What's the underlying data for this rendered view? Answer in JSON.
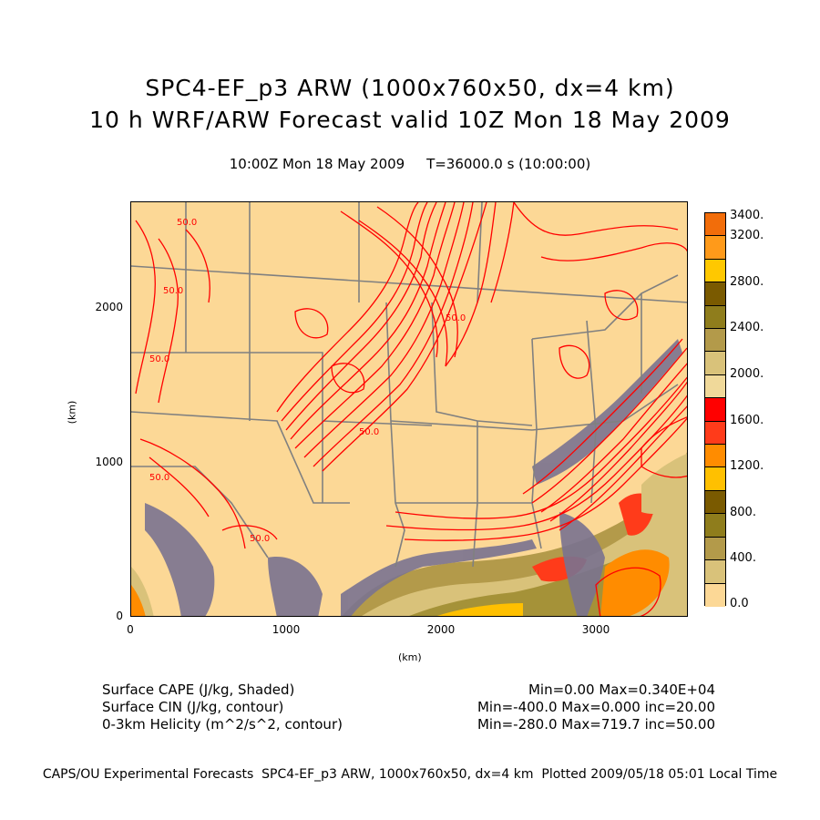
{
  "header": {
    "title_line1": "SPC4-EF_p3 ARW (1000x760x50, dx=4 km)",
    "title_line2": "10 h WRF/ARW Forecast valid 10Z Mon 18 May 2009",
    "subtitle": "10:00Z Mon 18 May 2009     T=36000.0 s (10:00:00)"
  },
  "axes": {
    "x_label": "(km)",
    "y_label": "(km)",
    "x_ticks": [
      "0",
      "1000",
      "2000",
      "3000"
    ],
    "y_ticks": [
      "0",
      "1000",
      "2000"
    ]
  },
  "map": {
    "shading_base_color": "#fcd896",
    "contour_color": "#ff0000",
    "boundary_color": "#808080",
    "terrain_color": "#7a7390",
    "contour_labels": [
      "50.0",
      "50.0",
      "50.0",
      "50.0",
      "50.0",
      "50.0",
      "50.0"
    ]
  },
  "colorbar": {
    "labels": [
      "3400.",
      "3200.",
      "2800.",
      "2400.",
      "2000.",
      "1600.",
      "1200.",
      "800.",
      "400.",
      "0.0"
    ],
    "colors": [
      "#f26d0a",
      "#ff9a1a",
      "#ffc800",
      "#7a5a00",
      "#8f7d1c",
      "#b39a4a",
      "#d9c27a",
      "#f0d99a",
      "#ff0000",
      "#ff3b1a",
      "#ff8c00",
      "#ffc000",
      "#7a5a00",
      "#8f7d1c",
      "#b39a4a",
      "#d9c27a",
      "#fcd896"
    ]
  },
  "legend": {
    "line1_name": "Surface CAPE (J/kg, Shaded)",
    "line1_stats": "Min=0.00 Max=0.340E+04",
    "line2_name": "Surface CIN (J/kg, contour)",
    "line2_stats": "Min=-400.0 Max=0.000 inc=20.00",
    "line3_name": "0-3km Helicity (m^2/s^2, contour)",
    "line3_stats": "Min=-280.0 Max=719.7 inc=50.00"
  },
  "footer": "CAPS/OU Experimental Forecasts  SPC4-EF_p3 ARW, 1000x760x50, dx=4 km  Plotted 2009/05/18 05:01 Local Time"
}
